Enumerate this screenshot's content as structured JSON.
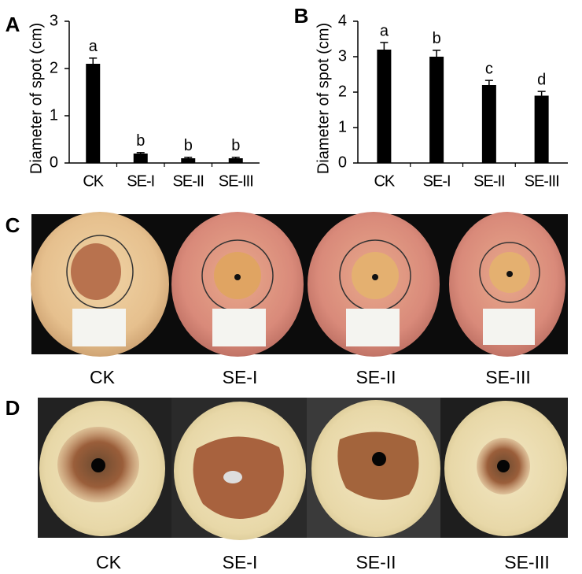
{
  "chart_data": [
    {
      "type": "bar",
      "panel_label": "A",
      "y_label": "Diameter of spot (cm)",
      "categories": [
        "CK",
        "SE-I",
        "SE-II",
        "SE-III"
      ],
      "values": [
        2.1,
        0.2,
        0.1,
        0.1
      ],
      "errors": [
        0.12,
        0.02,
        0.02,
        0.02
      ],
      "annotations": [
        "a",
        "b",
        "b",
        "b"
      ],
      "color": "#000000",
      "ylim": [
        0,
        3
      ],
      "yticks": [
        0,
        1,
        2,
        3
      ]
    },
    {
      "type": "bar",
      "panel_label": "B",
      "y_label": "Diameter of spot (cm)",
      "categories": [
        "CK",
        "SE-I",
        "SE-II",
        "SE-III"
      ],
      "values": [
        3.2,
        3.0,
        2.2,
        1.9
      ],
      "errors": [
        0.2,
        0.18,
        0.13,
        0.12
      ],
      "annotations": [
        "a",
        "b",
        "c",
        "d"
      ],
      "color": "#000000",
      "ylim": [
        0,
        4
      ],
      "yticks": [
        0,
        1,
        2,
        3,
        4
      ]
    }
  ],
  "photo_panels": [
    {
      "label": "C",
      "captions": [
        "CK",
        "SE-I",
        "SE-II",
        "SE-III"
      ]
    },
    {
      "label": "D",
      "captions": [
        "CK",
        "SE-I",
        "SE-II",
        "SE-III"
      ]
    }
  ]
}
